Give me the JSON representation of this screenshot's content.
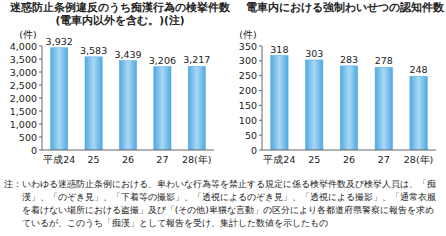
{
  "chart_data": [
    {
      "type": "bar",
      "title": "迷惑防止条例違反のうち痴漢行為の検挙件数",
      "subtitle": "(電車内以外を含む。)(注)",
      "y_label": "(件)",
      "categories": [
        "平成24",
        "25",
        "26",
        "27",
        "28(年)"
      ],
      "values": [
        3932,
        3583,
        3439,
        3206,
        3217
      ],
      "value_labels": [
        "3,932",
        "3,583",
        "3,439",
        "3,206",
        "3,217"
      ],
      "data_labels": true,
      "color": "#4fa9e3",
      "ylim": [
        0,
        4000
      ],
      "yticks": [
        0,
        500,
        {
          "value": 1000,
          "label": "1,000"
        },
        {
          "value": 1500,
          "label": "1,500"
        },
        {
          "value": 2000,
          "label": "2,000"
        },
        {
          "value": 2500,
          "label": "2,500"
        },
        {
          "value": 3000,
          "label": "3,000"
        },
        {
          "value": 3500,
          "label": "3,500"
        },
        {
          "value": 4000,
          "label": "4,000"
        }
      ],
      "grid": false
    },
    {
      "type": "bar",
      "title": "電車内における強制わいせつの認知件数",
      "y_label": "(件)",
      "categories": [
        "平成24",
        "25",
        "26",
        "27",
        "28(年)"
      ],
      "values": [
        318,
        303,
        283,
        278,
        248
      ],
      "data_labels": true,
      "color": "#4fa9e3",
      "ylim": [
        0,
        350
      ],
      "yticks": [
        0,
        50,
        100,
        150,
        200,
        250,
        300,
        350
      ],
      "grid": false
    }
  ],
  "note": "注：いわゆる迷惑防止条例における、卑わいな行為等を禁止する規定に係る検挙件数及び検挙人員は、「痴漢」、「のぞき見」、「下着等の撮影」、「透視によるのぞき見」、「透視による撮影」、「通常衣服を着けない場所における盗撮」及び「(その他)卑猥な言動」の区分により各都道府県警察に報告を求めているが、このうち「痴漢」として報告を受け、集計した数値を示したもの"
}
